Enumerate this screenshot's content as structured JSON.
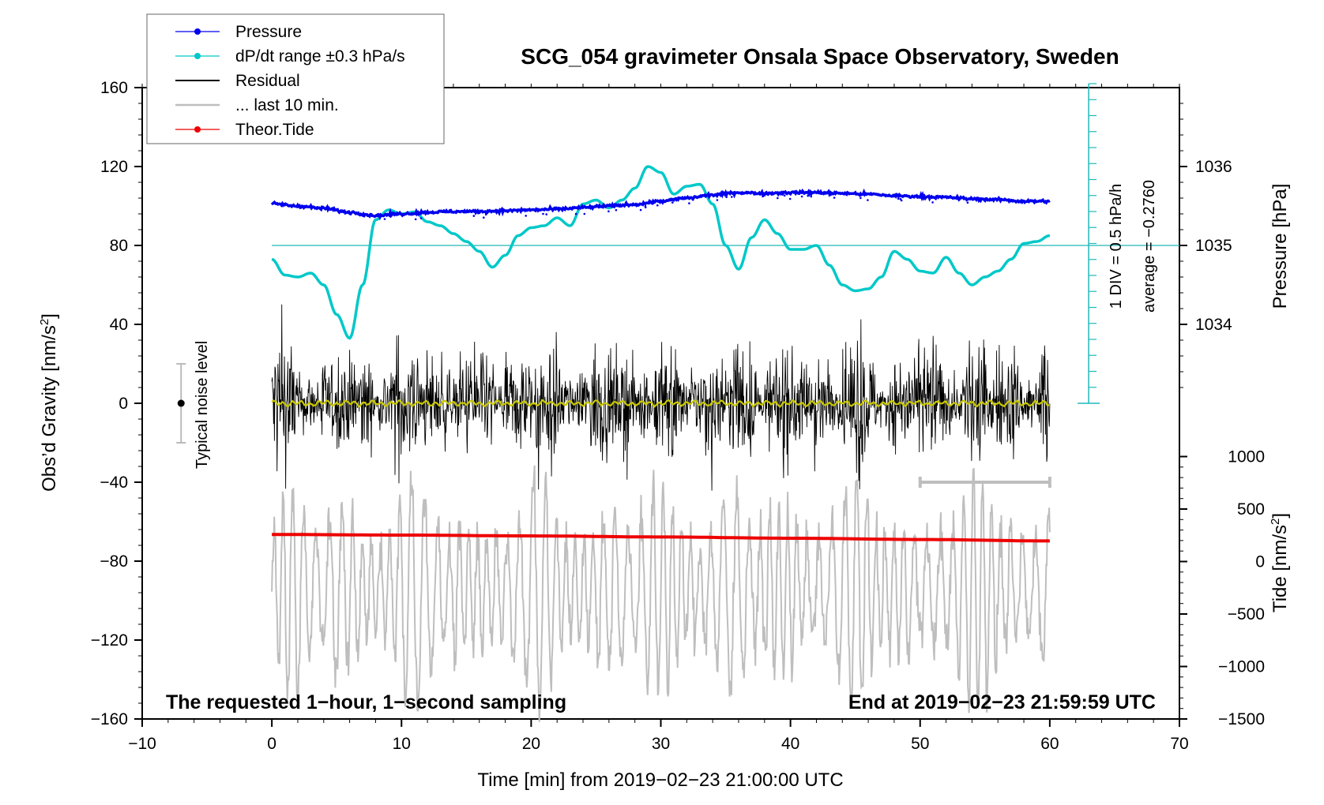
{
  "chart_data": {
    "type": "line",
    "title": "SCG_054 gravimeter Onsala Space Observatory, Sweden",
    "xlabel": "Time [min] from 2019−02−23 21:00:00 UTC",
    "ylabel_left": "Obs’d Gravity [nm/s²]",
    "ylabel_right_pressure": "Pressure [hPa]",
    "ylabel_right_tide": "Tide [nm/s²]",
    "xlim": [
      -10,
      70
    ],
    "ylim_left": [
      -160,
      160
    ],
    "x_ticks": [
      "−10",
      "0",
      "10",
      "20",
      "30",
      "40",
      "50",
      "60",
      "70"
    ],
    "x_tick_values": [
      -10,
      0,
      10,
      20,
      30,
      40,
      50,
      60,
      70
    ],
    "y_ticks_left": [
      "160",
      "120",
      "80",
      "40",
      "0",
      "−40",
      "−80",
      "−120",
      "−160"
    ],
    "y_tick_values_left": [
      160,
      120,
      80,
      40,
      0,
      -40,
      -80,
      -120,
      -160
    ],
    "pressure_ticks": [
      "1036",
      "1035",
      "1034"
    ],
    "pressure_tick_values": [
      1036,
      1035,
      1034
    ],
    "pressure_ref_gravity": {
      "1036": 120,
      "1035": 80,
      "1034": 40
    },
    "tide_ticks": [
      "1000",
      "500",
      "0",
      "−500",
      "−1000",
      "−1500"
    ],
    "tide_tick_values": [
      1000,
      500,
      0,
      -500,
      -1000,
      -1500
    ],
    "tide_gravity_at_1000": -27,
    "tide_gravity_at_minus1500": -160,
    "legend": [
      {
        "label": "Pressure",
        "color": "#0000ee",
        "style": "line-dot"
      },
      {
        "label": "dP/dt range ±0.3 hPa/s",
        "color": "#00c8c8",
        "style": "line-dot"
      },
      {
        "label": "Residual",
        "color": "#000000",
        "style": "line"
      },
      {
        "label": "... last 10 min.",
        "color": "#bebebe",
        "style": "line"
      },
      {
        "label": "Theor.Tide",
        "color": "#ee0000",
        "style": "line-dot"
      }
    ],
    "annotations": {
      "sampling": "The requested 1−hour, 1−second sampling",
      "end_time": "End at 2019−02−23 21:59:59 UTC",
      "noise_label": "Typical noise level",
      "dpdt_scale": "1 DIV = 0.5 hPa/h",
      "dpdt_average": "average = −0.2760"
    },
    "noise_bar": {
      "x": -7,
      "center": 0,
      "half_range": 20
    },
    "dpdt_axis": {
      "x": 63,
      "zero_gravity": 0,
      "top_gravity": 162,
      "baseline_gravity": 80,
      "minor_step": 8.1
    },
    "last10_bar": {
      "x_start": 50,
      "x_end": 60,
      "y": -40
    },
    "series": [
      {
        "name": "Pressure",
        "color": "#0000ee",
        "unit": "hPa",
        "x": [
          0,
          2,
          4,
          6,
          8,
          10,
          12,
          14,
          16,
          18,
          20,
          22,
          24,
          26,
          28,
          30,
          32,
          34,
          36,
          38,
          40,
          42,
          44,
          46,
          48,
          50,
          52,
          54,
          56,
          58,
          60
        ],
        "values": [
          1035.53,
          1035.5,
          1035.47,
          1035.42,
          1035.38,
          1035.4,
          1035.42,
          1035.43,
          1035.43,
          1035.44,
          1035.45,
          1035.46,
          1035.48,
          1035.5,
          1035.52,
          1035.56,
          1035.6,
          1035.64,
          1035.67,
          1035.66,
          1035.67,
          1035.67,
          1035.66,
          1035.65,
          1035.63,
          1035.62,
          1035.61,
          1035.59,
          1035.58,
          1035.56,
          1035.56
        ]
      },
      {
        "name": "dP/dt range ±0.3 hPa/s",
        "color": "#00c8c8",
        "unit": "nm/s² (plot units)",
        "x": [
          0,
          1,
          2,
          3,
          4,
          5,
          6,
          7,
          8,
          9,
          10,
          11,
          12,
          13,
          14,
          15,
          16,
          17,
          18,
          19,
          20,
          21,
          22,
          23,
          24,
          25,
          26,
          27,
          28,
          29,
          30,
          31,
          32,
          33,
          34,
          35,
          36,
          37,
          38,
          39,
          40,
          41,
          42,
          43,
          44,
          45,
          46,
          47,
          48,
          49,
          50,
          51,
          52,
          53,
          54,
          55,
          56,
          57,
          58,
          59,
          60
        ],
        "values": [
          73,
          65,
          64,
          66,
          60,
          45,
          33,
          60,
          93,
          98,
          96,
          97,
          92,
          90,
          86,
          82,
          77,
          69,
          75,
          85,
          89,
          90,
          94,
          90,
          101,
          103,
          99,
          103,
          109,
          120,
          117,
          106,
          110,
          111,
          101,
          80,
          68,
          84,
          93,
          86,
          78,
          78,
          80,
          70,
          60,
          57,
          58,
          64,
          77,
          73,
          67,
          66,
          74,
          66,
          60,
          64,
          67,
          73,
          81,
          82,
          85
        ]
      },
      {
        "name": "Residual",
        "color": "#000000",
        "unit": "nm/s²",
        "description": "1 Hz residual noise, amplitude about ±60 nm/s² around 0"
      },
      {
        "name": "... last 10 min.",
        "color": "#bebebe",
        "unit": "nm/s²",
        "description": "oscillating trace centred near −95 nm/s², amplitude up to about ±70"
      },
      {
        "name": "Theor.Tide",
        "color": "#ee0000",
        "unit": "nm/s²",
        "x": [
          0,
          10,
          20,
          30,
          40,
          50,
          60
        ],
        "values": [
          258,
          252,
          244,
          234,
          222,
          210,
          196
        ]
      },
      {
        "name": "Smoothed residual",
        "color": "#c8c800",
        "unit": "nm/s²",
        "description": "near-zero yellow trace, within about ±2"
      }
    ]
  }
}
